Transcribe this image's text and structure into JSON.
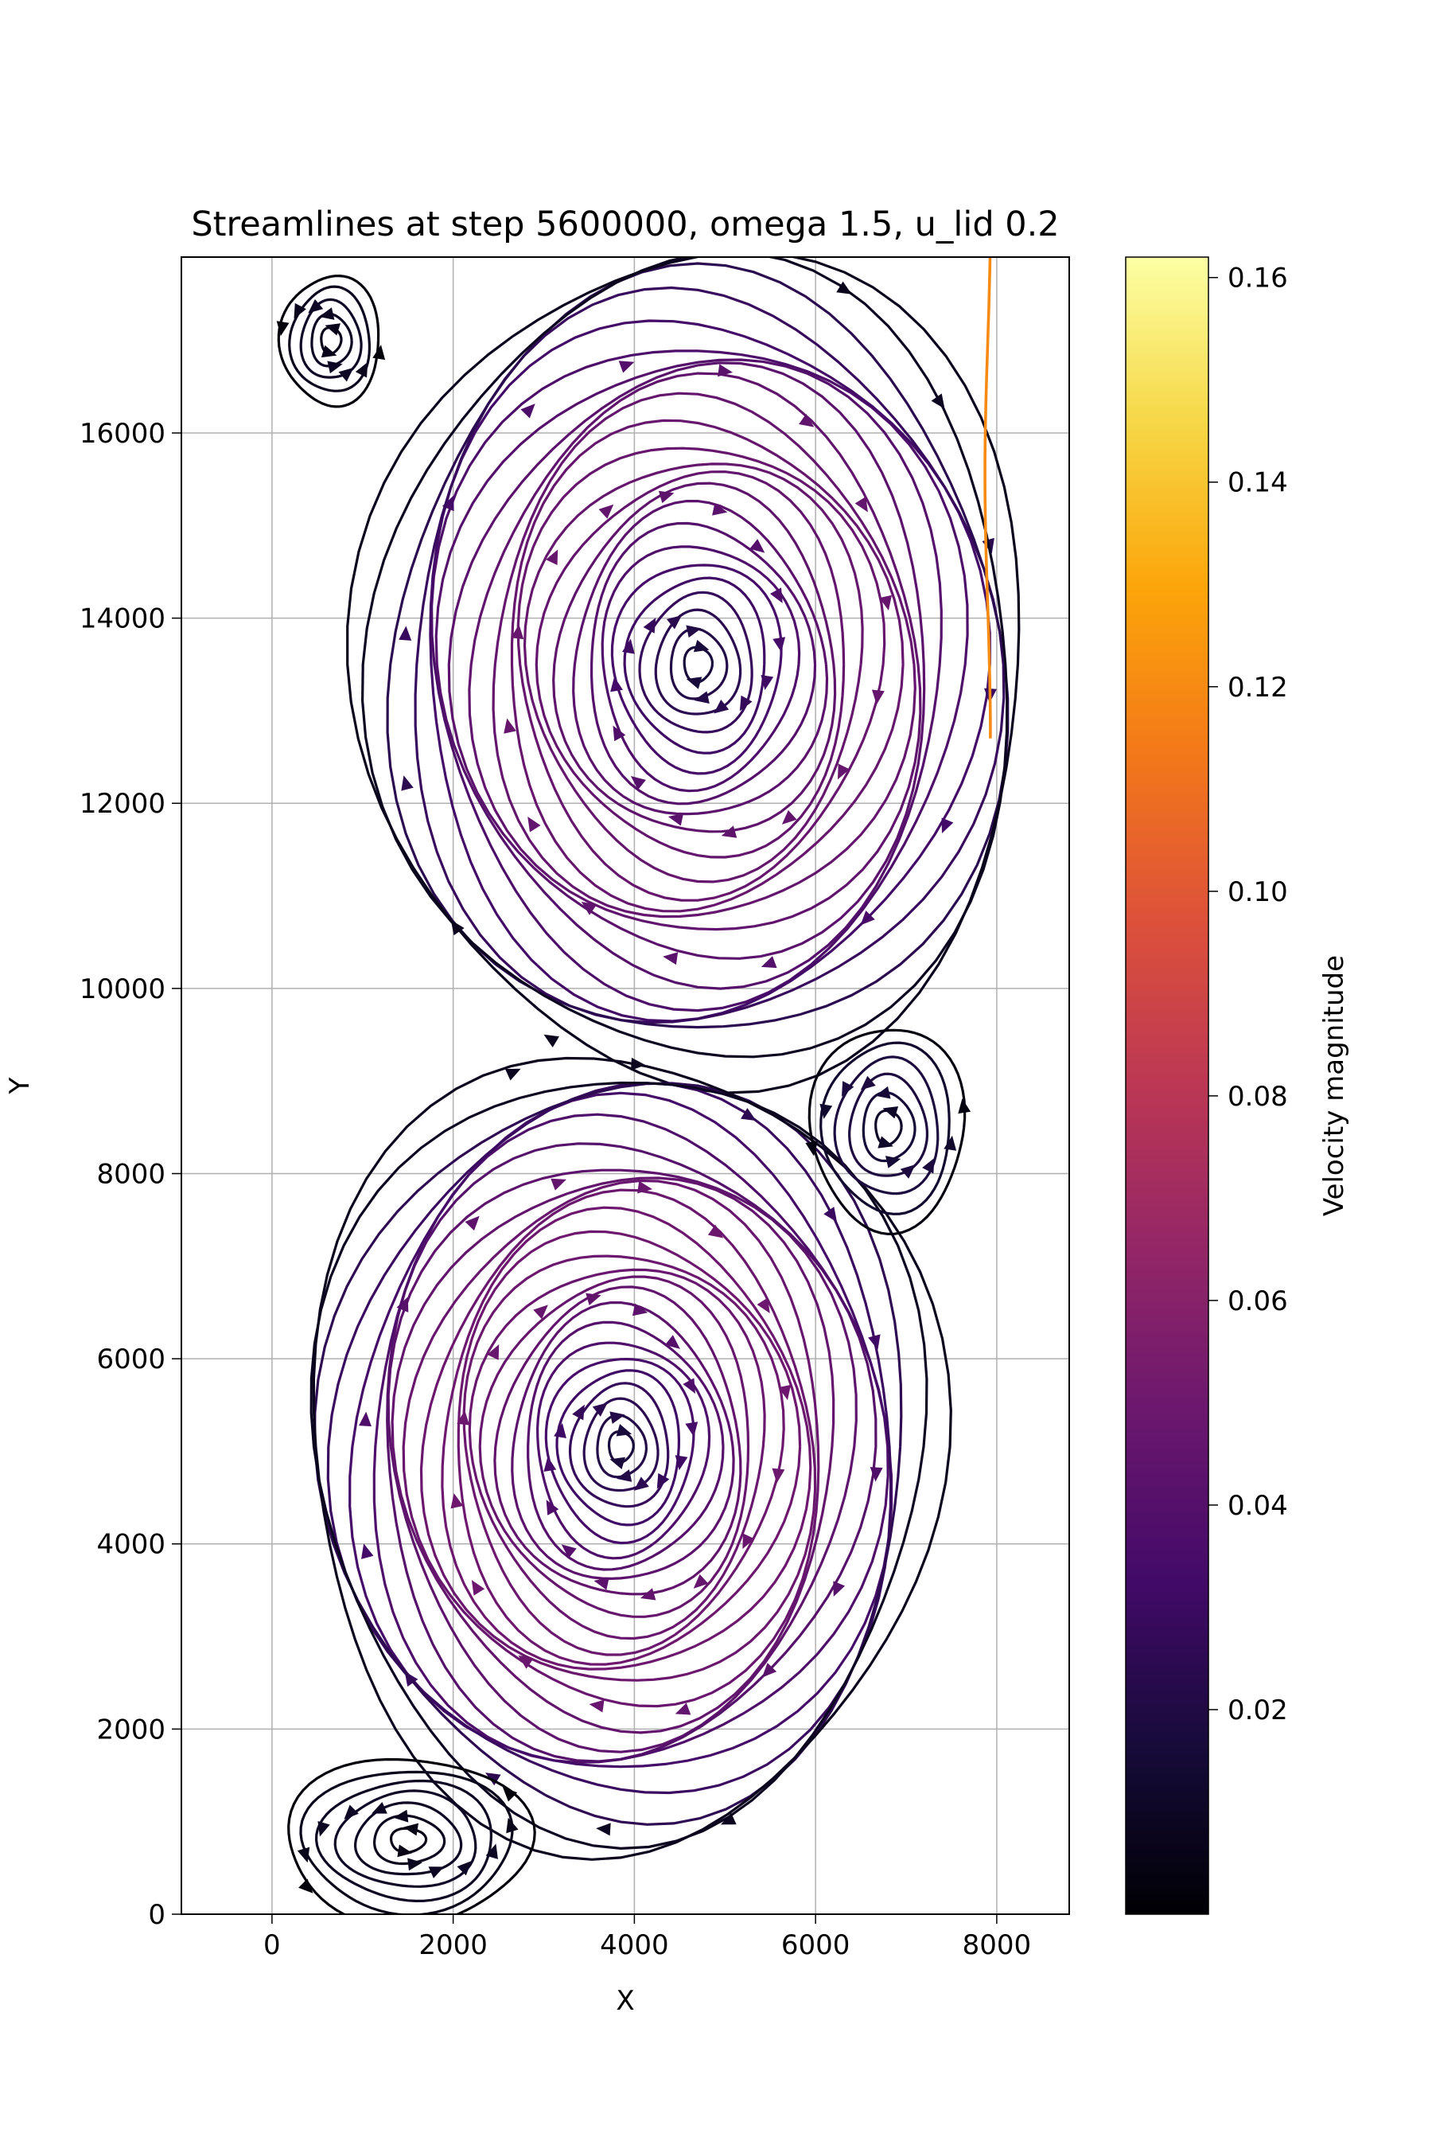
{
  "chart_data": {
    "type": "streamplot",
    "title": "Streamlines at step 5600000, omega 1.5, u_lid 0.2",
    "xlabel": "X",
    "ylabel": "Y",
    "xlim": [
      -1000,
      8800
    ],
    "ylim": [
      0,
      17900
    ],
    "domain": {
      "x": [
        0,
        8000
      ],
      "y": [
        0,
        17900
      ]
    },
    "xticks": [
      0,
      2000,
      4000,
      6000,
      8000
    ],
    "yticks": [
      0,
      2000,
      4000,
      6000,
      8000,
      10000,
      12000,
      14000,
      16000
    ],
    "grid": true,
    "colormap": "inferno",
    "colorbar": {
      "label": "Velocity magnitude",
      "range": [
        0.0,
        0.162
      ],
      "ticks": [
        0.02,
        0.04,
        0.06,
        0.08,
        0.1,
        0.12,
        0.14,
        0.16
      ],
      "tick_labels": [
        "0.02",
        "0.04",
        "0.06",
        "0.08",
        "0.10",
        "0.12",
        "0.14",
        "0.16"
      ]
    },
    "vortices": [
      {
        "name": "upper primary",
        "center": [
          4700,
          13500
        ],
        "rx": 3700,
        "ry": 4500,
        "rotation": "clockwise",
        "speed_max": 0.055,
        "rings": 24
      },
      {
        "name": "lower primary",
        "center": [
          3850,
          5050
        ],
        "rx": 3500,
        "ry": 4300,
        "rotation": "clockwise",
        "speed_max": 0.058,
        "rings": 26
      },
      {
        "name": "top-left corner",
        "center": [
          650,
          17000
        ],
        "rx": 550,
        "ry": 700,
        "rotation": "counterclockwise",
        "speed_max": 0.012,
        "rings": 5
      },
      {
        "name": "right middle",
        "center": [
          6800,
          8500
        ],
        "rx": 850,
        "ry": 1100,
        "rotation": "counterclockwise",
        "speed_max": 0.022,
        "rings": 6
      },
      {
        "name": "bottom-left corner",
        "center": [
          1500,
          800
        ],
        "rx": 1350,
        "ry": 900,
        "rotation": "counterclockwise",
        "speed_max": 0.012,
        "rings": 7
      }
    ],
    "lid_jet": {
      "x": 7900,
      "y_range": [
        12600,
        17900
      ],
      "speed_max": 0.12
    }
  }
}
